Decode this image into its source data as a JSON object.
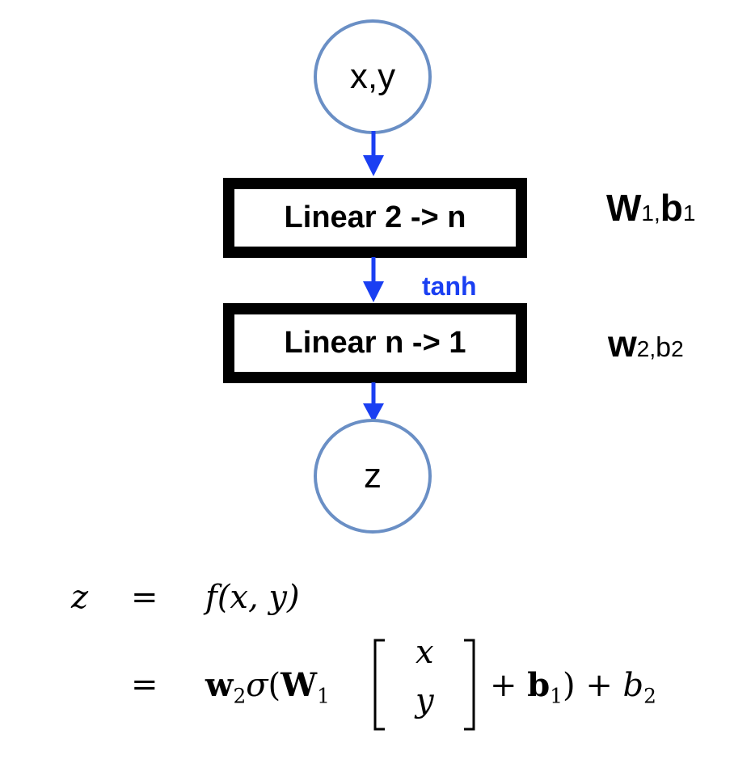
{
  "diagram": {
    "input_node": "x,y",
    "output_node": "z",
    "layer1": {
      "label": "Linear 2 -> n",
      "param_bold_1": "W",
      "param_sub_1": "1",
      "param_sep": ",",
      "param_bold_2": "b",
      "param_sub_2": "1"
    },
    "activation": "tanh",
    "layer2": {
      "label": "Linear n -> 1",
      "param_bold_1": "w",
      "param_sub_1": "2",
      "param_sep": ",",
      "param_plain_2": "b",
      "param_sub_2": "2"
    },
    "colors": {
      "arrow": "#1a3ff2",
      "node_border": "#6a8fc5",
      "box_border": "#000000"
    }
  },
  "equation": {
    "line1_lhs": "z",
    "equals": "=",
    "line1_rhs_f": "f",
    "line1_rhs_args": "(x, y)",
    "line2_w": "w",
    "line2_w_sub": "2",
    "line2_sigma": "σ",
    "line2_open": "(",
    "line2_W": "W",
    "line2_W_sub": "1",
    "vector_top": "x",
    "vector_bottom": "y",
    "line2_plus": "+",
    "line2_b": "b",
    "line2_b_sub": "1",
    "line2_close": ")",
    "line2_plus2": "+",
    "line2_b2": "b",
    "line2_b2_sub": "2"
  }
}
